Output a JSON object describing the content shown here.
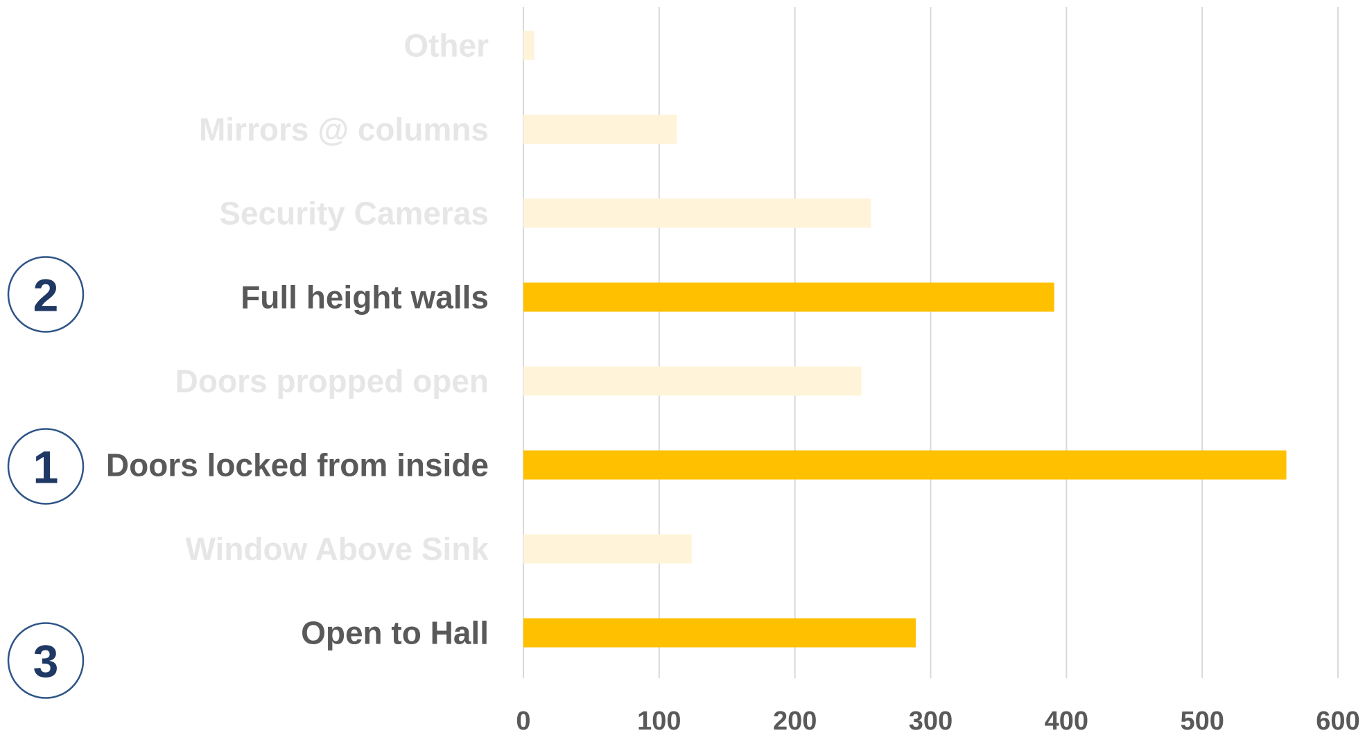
{
  "chart_data": {
    "type": "bar",
    "orientation": "horizontal",
    "title": "",
    "xlabel": "",
    "ylabel": "",
    "xlim": [
      0,
      600
    ],
    "x_ticks": [
      0,
      100,
      200,
      300,
      400,
      500,
      600
    ],
    "grid": true,
    "legend": "none",
    "categories": [
      "Other",
      "Mirrors @ columns",
      "Security Cameras",
      "Full height walls",
      "Doors propped open",
      "Doors locked from inside",
      "Window Above Sink",
      "Open to Hall"
    ],
    "values": [
      8,
      113,
      256,
      391,
      249,
      562,
      124,
      289
    ],
    "highlighted": [
      false,
      false,
      false,
      true,
      false,
      true,
      false,
      true
    ],
    "ranks": [
      {
        "category": "Full height walls",
        "rank": "2"
      },
      {
        "category": "Doors locked from inside",
        "rank": "1"
      },
      {
        "category": "Open to Hall",
        "rank": "3"
      }
    ]
  },
  "colors": {
    "bar_highlight": "#FFC000",
    "bar_faded": "#FFF4D9",
    "label_highlight": "#595959",
    "label_faded": "#E6E6E6",
    "tick_label": "#595959",
    "gridline": "#D9D9D9",
    "rank_circle": "#2F5587",
    "rank_number": "#1F3864"
  }
}
